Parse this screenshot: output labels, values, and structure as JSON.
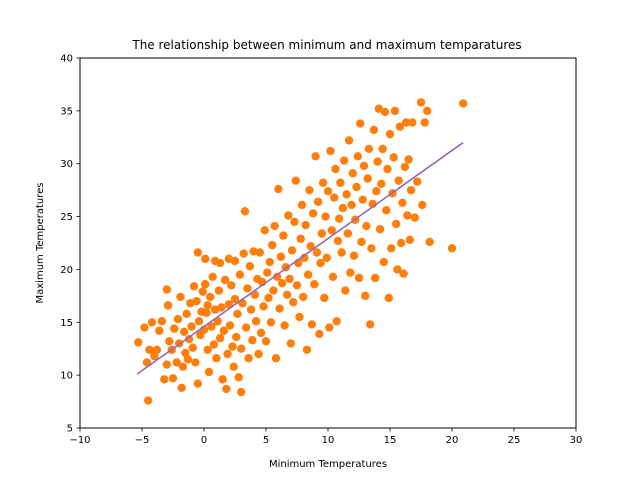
{
  "chart_data": {
    "type": "scatter",
    "title": "The relationship between minimum and maximum temparatures",
    "xlabel": "Minimum Temperatures",
    "ylabel": "Maximum Temperatures",
    "xlim": [
      -10,
      30
    ],
    "ylim": [
      5,
      40
    ],
    "xticks": [
      -10,
      -5,
      0,
      5,
      10,
      15,
      20,
      25,
      30
    ],
    "xtick_labels": [
      "−10",
      "−5",
      "0",
      "5",
      "10",
      "15",
      "20",
      "25",
      "30"
    ],
    "yticks": [
      5,
      10,
      15,
      20,
      25,
      30,
      35,
      40
    ],
    "ytick_labels": [
      "5",
      "10",
      "15",
      "20",
      "25",
      "30",
      "35",
      "40"
    ],
    "grid": false,
    "series": [
      {
        "type": "scatter",
        "color": "#ff7f0e",
        "points": [
          [
            -5.3,
            13.1
          ],
          [
            -4.8,
            14.5
          ],
          [
            -4.6,
            11.2
          ],
          [
            -4.5,
            7.6
          ],
          [
            -4.4,
            12.4
          ],
          [
            -4.2,
            15.0
          ],
          [
            -4.0,
            11.8
          ],
          [
            -3.8,
            12.4
          ],
          [
            -3.6,
            14.2
          ],
          [
            -3.4,
            15.1
          ],
          [
            -3.2,
            9.6
          ],
          [
            -3.0,
            18.1
          ],
          [
            -3.0,
            11.0
          ],
          [
            -2.9,
            16.6
          ],
          [
            -2.8,
            13.2
          ],
          [
            -2.6,
            12.4
          ],
          [
            -2.5,
            9.7
          ],
          [
            -2.4,
            14.4
          ],
          [
            -2.2,
            11.2
          ],
          [
            -2.1,
            15.3
          ],
          [
            -2.0,
            13.0
          ],
          [
            -1.9,
            17.4
          ],
          [
            -1.8,
            8.8
          ],
          [
            -1.7,
            10.8
          ],
          [
            -1.6,
            14.1
          ],
          [
            -1.5,
            12.1
          ],
          [
            -1.4,
            15.8
          ],
          [
            -1.3,
            11.5
          ],
          [
            -1.2,
            13.4
          ],
          [
            -1.1,
            16.8
          ],
          [
            -1.0,
            14.6
          ],
          [
            -0.9,
            12.6
          ],
          [
            -0.8,
            18.4
          ],
          [
            -0.7,
            11.2
          ],
          [
            -0.6,
            17.0
          ],
          [
            -0.5,
            9.2
          ],
          [
            -0.5,
            21.6
          ],
          [
            -0.4,
            15.1
          ],
          [
            -0.3,
            13.8
          ],
          [
            -0.2,
            16.0
          ],
          [
            -0.1,
            17.9
          ],
          [
            0.0,
            14.3
          ],
          [
            0.1,
            18.6
          ],
          [
            0.1,
            21.0
          ],
          [
            0.2,
            15.9
          ],
          [
            0.3,
            12.4
          ],
          [
            0.3,
            16.6
          ],
          [
            0.4,
            10.3
          ],
          [
            0.5,
            17.4
          ],
          [
            0.6,
            14.6
          ],
          [
            0.7,
            19.3
          ],
          [
            0.8,
            12.9
          ],
          [
            0.9,
            16.2
          ],
          [
            0.9,
            20.8
          ],
          [
            1.0,
            11.6
          ],
          [
            1.1,
            15.1
          ],
          [
            1.2,
            18.0
          ],
          [
            1.3,
            13.5
          ],
          [
            1.3,
            20.6
          ],
          [
            1.4,
            16.4
          ],
          [
            1.5,
            9.6
          ],
          [
            1.6,
            14.2
          ],
          [
            1.7,
            19.0
          ],
          [
            1.8,
            8.7
          ],
          [
            1.9,
            12.0
          ],
          [
            2.0,
            16.7
          ],
          [
            2.0,
            21.0
          ],
          [
            2.1,
            14.7
          ],
          [
            2.2,
            18.5
          ],
          [
            2.3,
            12.7
          ],
          [
            2.4,
            10.8
          ],
          [
            2.5,
            17.2
          ],
          [
            2.5,
            20.8
          ],
          [
            2.6,
            13.6
          ],
          [
            2.7,
            15.8
          ],
          [
            2.8,
            9.8
          ],
          [
            2.9,
            19.5
          ],
          [
            3.0,
            8.4
          ],
          [
            3.0,
            12.5
          ],
          [
            3.1,
            16.8
          ],
          [
            3.2,
            21.5
          ],
          [
            3.3,
            25.5
          ],
          [
            3.4,
            14.5
          ],
          [
            3.5,
            18.2
          ],
          [
            3.6,
            11.6
          ],
          [
            3.7,
            20.3
          ],
          [
            3.8,
            16.2
          ],
          [
            3.9,
            13.3
          ],
          [
            4.0,
            21.7
          ],
          [
            4.1,
            17.6
          ],
          [
            4.2,
            15.1
          ],
          [
            4.3,
            19.1
          ],
          [
            4.4,
            12.0
          ],
          [
            4.5,
            21.6
          ],
          [
            4.6,
            14.0
          ],
          [
            4.7,
            18.8
          ],
          [
            4.8,
            16.5
          ],
          [
            4.9,
            23.7
          ],
          [
            5.0,
            13.2
          ],
          [
            5.1,
            19.7
          ],
          [
            5.2,
            17.3
          ],
          [
            5.3,
            20.7
          ],
          [
            5.4,
            15.0
          ],
          [
            5.5,
            22.3
          ],
          [
            5.6,
            18.0
          ],
          [
            5.7,
            24.1
          ],
          [
            5.8,
            11.6
          ],
          [
            5.9,
            19.3
          ],
          [
            6.0,
            27.6
          ],
          [
            6.1,
            16.3
          ],
          [
            6.2,
            21.2
          ],
          [
            6.3,
            18.7
          ],
          [
            6.4,
            23.2
          ],
          [
            6.5,
            14.7
          ],
          [
            6.6,
            20.2
          ],
          [
            6.7,
            17.6
          ],
          [
            6.8,
            25.1
          ],
          [
            6.9,
            19.1
          ],
          [
            7.0,
            13.0
          ],
          [
            7.1,
            21.8
          ],
          [
            7.2,
            16.9
          ],
          [
            7.3,
            24.5
          ],
          [
            7.4,
            28.4
          ],
          [
            7.5,
            18.5
          ],
          [
            7.6,
            20.6
          ],
          [
            7.7,
            15.5
          ],
          [
            7.8,
            22.9
          ],
          [
            7.9,
            26.1
          ],
          [
            8.0,
            17.4
          ],
          [
            8.1,
            21.1
          ],
          [
            8.2,
            24.2
          ],
          [
            8.3,
            12.4
          ],
          [
            8.4,
            19.5
          ],
          [
            8.5,
            27.5
          ],
          [
            8.6,
            22.2
          ],
          [
            8.7,
            14.8
          ],
          [
            8.8,
            25.3
          ],
          [
            8.9,
            18.6
          ],
          [
            9.0,
            30.7
          ],
          [
            9.1,
            21.6
          ],
          [
            9.2,
            26.4
          ],
          [
            9.3,
            13.9
          ],
          [
            9.4,
            20.6
          ],
          [
            9.5,
            23.4
          ],
          [
            9.6,
            28.2
          ],
          [
            9.7,
            17.3
          ],
          [
            9.8,
            25.0
          ],
          [
            9.9,
            21.1
          ],
          [
            10.0,
            27.4
          ],
          [
            10.1,
            14.5
          ],
          [
            10.2,
            31.2
          ],
          [
            10.3,
            23.7
          ],
          [
            10.4,
            19.3
          ],
          [
            10.5,
            26.8
          ],
          [
            10.6,
            29.5
          ],
          [
            10.7,
            15.1
          ],
          [
            10.8,
            22.7
          ],
          [
            10.9,
            24.8
          ],
          [
            11.0,
            28.2
          ],
          [
            11.1,
            21.6
          ],
          [
            11.2,
            25.8
          ],
          [
            11.3,
            30.3
          ],
          [
            11.4,
            18.0
          ],
          [
            11.5,
            27.1
          ],
          [
            11.6,
            23.4
          ],
          [
            11.7,
            32.2
          ],
          [
            11.8,
            19.7
          ],
          [
            11.9,
            26.1
          ],
          [
            12.0,
            29.1
          ],
          [
            12.1,
            21.3
          ],
          [
            12.2,
            24.7
          ],
          [
            12.3,
            27.8
          ],
          [
            12.4,
            30.7
          ],
          [
            12.5,
            19.2
          ],
          [
            12.6,
            33.8
          ],
          [
            12.7,
            22.6
          ],
          [
            12.8,
            26.6
          ],
          [
            12.9,
            29.8
          ],
          [
            13.0,
            17.5
          ],
          [
            13.1,
            24.1
          ],
          [
            13.2,
            28.6
          ],
          [
            13.3,
            31.4
          ],
          [
            13.4,
            14.8
          ],
          [
            13.5,
            22.0
          ],
          [
            13.6,
            26.2
          ],
          [
            13.7,
            33.2
          ],
          [
            13.8,
            19.2
          ],
          [
            13.9,
            27.4
          ],
          [
            14.0,
            30.2
          ],
          [
            14.1,
            35.2
          ],
          [
            14.2,
            23.8
          ],
          [
            14.3,
            28.1
          ],
          [
            14.4,
            31.4
          ],
          [
            14.5,
            20.7
          ],
          [
            14.6,
            34.9
          ],
          [
            14.7,
            25.6
          ],
          [
            14.8,
            29.5
          ],
          [
            14.9,
            17.3
          ],
          [
            15.0,
            32.8
          ],
          [
            15.1,
            22.0
          ],
          [
            15.2,
            27.2
          ],
          [
            15.3,
            30.6
          ],
          [
            15.4,
            35.0
          ],
          [
            15.5,
            24.3
          ],
          [
            15.6,
            20.0
          ],
          [
            15.7,
            28.4
          ],
          [
            15.8,
            33.5
          ],
          [
            15.9,
            22.5
          ],
          [
            16.0,
            26.3
          ],
          [
            16.1,
            19.6
          ],
          [
            16.2,
            29.7
          ],
          [
            16.3,
            33.9
          ],
          [
            16.4,
            25.1
          ],
          [
            16.5,
            30.4
          ],
          [
            16.6,
            22.8
          ],
          [
            16.7,
            27.5
          ],
          [
            16.8,
            33.9
          ],
          [
            17.0,
            24.9
          ],
          [
            17.2,
            28.3
          ],
          [
            17.5,
            35.8
          ],
          [
            17.6,
            26.1
          ],
          [
            17.8,
            33.9
          ],
          [
            18.0,
            35.0
          ],
          [
            18.2,
            22.6
          ],
          [
            20.0,
            22.0
          ],
          [
            20.9,
            35.7
          ]
        ]
      },
      {
        "type": "line",
        "color": "#9467bd",
        "points": [
          [
            -5.4,
            10.1
          ],
          [
            20.9,
            32.0
          ]
        ]
      }
    ]
  }
}
